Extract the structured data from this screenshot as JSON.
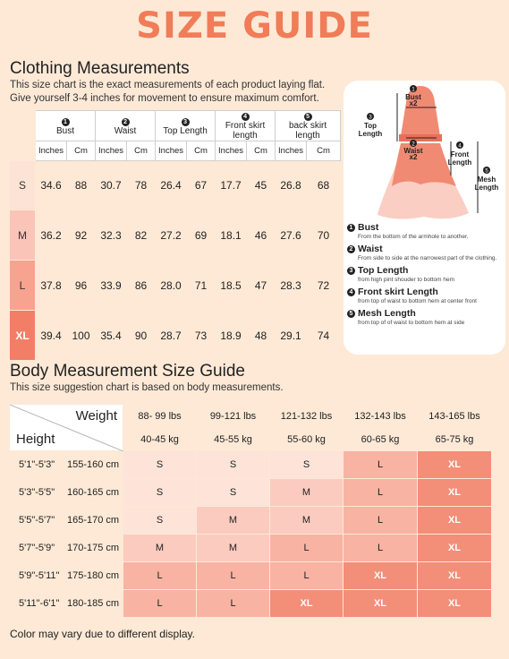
{
  "title": "SIZE GUIDE",
  "clothing": {
    "heading": "Clothing Measurements",
    "desc1": "This size chart is the exact measurements of each product laying flat.",
    "desc2": "Give yourself 3-4 inches for movement to ensure maximum comfort.",
    "columns": [
      {
        "num": "1",
        "label": "Bust"
      },
      {
        "num": "2",
        "label": "Waist"
      },
      {
        "num": "3",
        "label": "Top Length"
      },
      {
        "num": "4",
        "label": "Front skirt length"
      },
      {
        "num": "5",
        "label": "back skirt length"
      }
    ],
    "unit_in": "Inches",
    "unit_cm": "Cm",
    "rows": [
      {
        "size": "S",
        "values": [
          "34.6",
          "88",
          "30.7",
          "78",
          "26.4",
          "67",
          "17.7",
          "45",
          "26.8",
          "68"
        ]
      },
      {
        "size": "M",
        "values": [
          "36.2",
          "92",
          "32.3",
          "82",
          "27.2",
          "69",
          "18.1",
          "46",
          "27.6",
          "70"
        ]
      },
      {
        "size": "L",
        "values": [
          "37.8",
          "96",
          "33.9",
          "86",
          "28.0",
          "71",
          "18.5",
          "47",
          "28.3",
          "72"
        ]
      },
      {
        "size": "XL",
        "values": [
          "39.4",
          "100",
          "35.4",
          "90",
          "28.7",
          "73",
          "18.9",
          "48",
          "29.1",
          "74"
        ]
      }
    ]
  },
  "diagram": {
    "bust_label": "Bust",
    "waist_label": "Waist",
    "x2": "x2",
    "top_length_1": "Top",
    "top_length_2": "Length",
    "front_length_1": "Front",
    "front_length_2": "Length",
    "mesh_length_1": "Mesh",
    "mesh_length_2": "Length",
    "dress_color": "#f08a72",
    "legend": [
      {
        "num": "1",
        "title": "Bust",
        "desc": "From the bottom of the armhole to another."
      },
      {
        "num": "2",
        "title": "Waist",
        "desc": "From side to side at the narrowest part of the clothing."
      },
      {
        "num": "3",
        "title": "Top Length",
        "desc": "from high pint shouder to bottom hem"
      },
      {
        "num": "4",
        "title": "Front skirt Length",
        "desc": "from top of waist to bottom hem at center front"
      },
      {
        "num": "5",
        "title": "Mesh Length",
        "desc": "from top of of waist to bottom hem at side"
      }
    ]
  },
  "body": {
    "heading": "Body Measurement Size Guide",
    "desc": "This size suggestion chart is based on body measurements.",
    "weight_label": "Weight",
    "height_label": "Height",
    "weights_lbs": [
      "88- 99 lbs",
      "99-121 lbs",
      "121-132 lbs",
      "132-143 lbs",
      "143-165 lbs"
    ],
    "weights_kg": [
      "40-45 kg",
      "45-55 kg",
      "55-60 kg",
      "60-65 kg",
      "65-75 kg"
    ],
    "rows": [
      {
        "ft": "5'1\"-5'3\"",
        "cm": "155-160 cm",
        "sizes": [
          "S",
          "S",
          "S",
          "L",
          "XL"
        ]
      },
      {
        "ft": "5'3\"-5'5\"",
        "cm": "160-165 cm",
        "sizes": [
          "S",
          "S",
          "M",
          "L",
          "XL"
        ]
      },
      {
        "ft": "5'5\"-5'7\"",
        "cm": "165-170 cm",
        "sizes": [
          "S",
          "M",
          "M",
          "L",
          "XL"
        ]
      },
      {
        "ft": "5'7\"-5'9\"",
        "cm": "170-175 cm",
        "sizes": [
          "M",
          "M",
          "L",
          "L",
          "XL"
        ]
      },
      {
        "ft": "5'9\"-5'11\"",
        "cm": "175-180 cm",
        "sizes": [
          "L",
          "L",
          "L",
          "XL",
          "XL"
        ]
      },
      {
        "ft": "5'11\"-6'1\"",
        "cm": "180-185 cm",
        "sizes": [
          "L",
          "L",
          "XL",
          "XL",
          "XL"
        ]
      }
    ]
  },
  "footer": "Color may vary due to different display."
}
